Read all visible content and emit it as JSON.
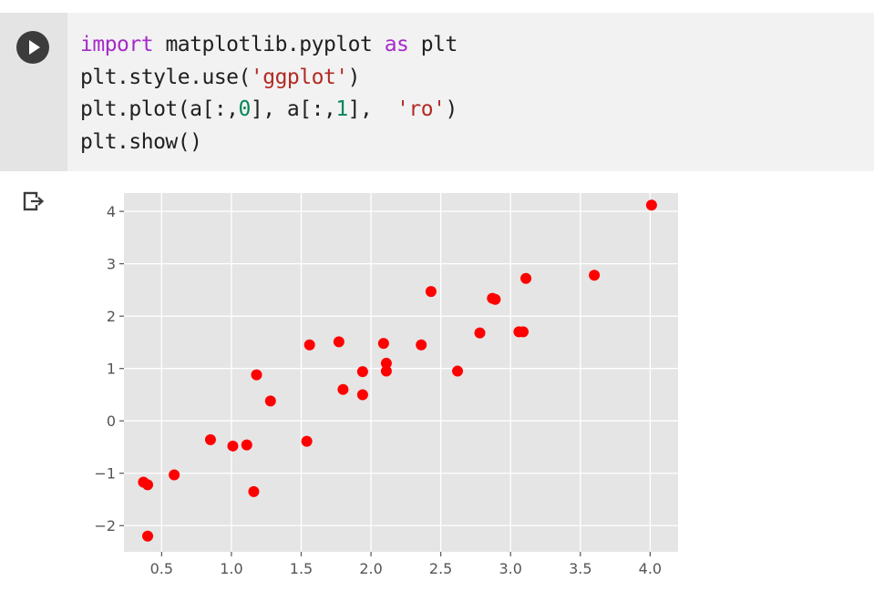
{
  "cell": {
    "run_button": "play-icon",
    "code_lines": [
      [
        {
          "t": "import",
          "c": "kw"
        },
        {
          "t": " matplotlib.pyplot ",
          "c": ""
        },
        {
          "t": "as",
          "c": "kw"
        },
        {
          "t": " plt",
          "c": ""
        }
      ],
      [
        {
          "t": "plt.style.use(",
          "c": ""
        },
        {
          "t": "'ggplot'",
          "c": "str"
        },
        {
          "t": ")",
          "c": ""
        }
      ],
      [
        {
          "t": "plt.plot(a[:,",
          "c": ""
        },
        {
          "t": "0",
          "c": "num"
        },
        {
          "t": "], a[:,",
          "c": ""
        },
        {
          "t": "1",
          "c": "num"
        },
        {
          "t": "],  ",
          "c": ""
        },
        {
          "t": "'ro'",
          "c": "str"
        },
        {
          "t": ")",
          "c": ""
        }
      ],
      [
        {
          "t": "plt.show()",
          "c": ""
        }
      ]
    ]
  },
  "output": {
    "icon": "output-arrow-icon"
  },
  "colors": {
    "cell_bg": "#f2f2f2",
    "gutter_bg": "#e4e4e4",
    "plot_bg": "#e5e5e5",
    "grid": "#ffffff",
    "marker": "#ff0000",
    "keyword": "#a52bc8",
    "string": "#b22b22",
    "number": "#098658"
  },
  "chart_data": {
    "type": "scatter",
    "style": "ggplot",
    "marker": "ro",
    "grid": true,
    "title": "",
    "xlabel": "",
    "ylabel": "",
    "xlim": [
      0.23,
      4.2
    ],
    "ylim": [
      -2.5,
      4.35
    ],
    "xticks": [
      0.5,
      1.0,
      1.5,
      2.0,
      2.5,
      3.0,
      3.5,
      4.0
    ],
    "xtick_labels": [
      "0.5",
      "1.0",
      "1.5",
      "2.0",
      "2.5",
      "3.0",
      "3.5",
      "4.0"
    ],
    "yticks": [
      -2,
      -1,
      0,
      1,
      2,
      3,
      4
    ],
    "ytick_labels": [
      "−2",
      "−1",
      "0",
      "1",
      "2",
      "3",
      "4"
    ],
    "points": [
      {
        "x": 0.37,
        "y": -1.17
      },
      {
        "x": 0.4,
        "y": -1.22
      },
      {
        "x": 0.4,
        "y": -2.2
      },
      {
        "x": 0.59,
        "y": -1.03
      },
      {
        "x": 0.85,
        "y": -0.36
      },
      {
        "x": 1.01,
        "y": -0.48
      },
      {
        "x": 1.11,
        "y": -0.46
      },
      {
        "x": 1.16,
        "y": -1.35
      },
      {
        "x": 1.18,
        "y": 0.88
      },
      {
        "x": 1.28,
        "y": 0.38
      },
      {
        "x": 1.54,
        "y": -0.39
      },
      {
        "x": 1.56,
        "y": 1.45
      },
      {
        "x": 1.77,
        "y": 1.51
      },
      {
        "x": 1.8,
        "y": 0.6
      },
      {
        "x": 1.94,
        "y": 0.94
      },
      {
        "x": 1.94,
        "y": 0.5
      },
      {
        "x": 2.09,
        "y": 1.48
      },
      {
        "x": 2.11,
        "y": 1.1
      },
      {
        "x": 2.11,
        "y": 0.95
      },
      {
        "x": 2.36,
        "y": 1.45
      },
      {
        "x": 2.43,
        "y": 2.47
      },
      {
        "x": 2.62,
        "y": 0.95
      },
      {
        "x": 2.78,
        "y": 1.68
      },
      {
        "x": 2.87,
        "y": 2.34
      },
      {
        "x": 2.89,
        "y": 2.32
      },
      {
        "x": 3.06,
        "y": 1.7
      },
      {
        "x": 3.09,
        "y": 1.7
      },
      {
        "x": 3.11,
        "y": 2.72
      },
      {
        "x": 3.6,
        "y": 2.78
      },
      {
        "x": 4.01,
        "y": 4.12
      }
    ]
  }
}
